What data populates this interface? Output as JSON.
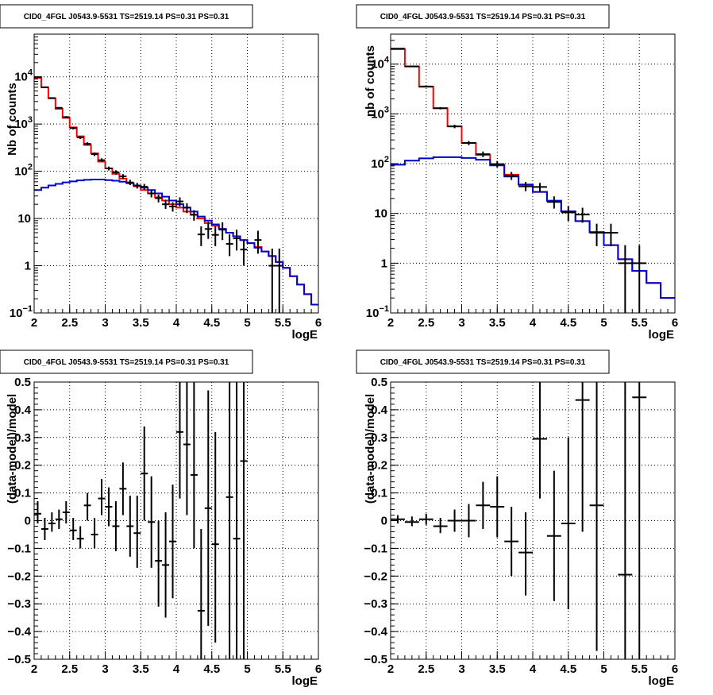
{
  "chart_data": [
    {
      "type": "histogram",
      "panel": "top-left",
      "title": "CID0_4FGL J0543.9-5531 TS=2519.14 PS=0.31 PS=0.31",
      "xlabel": "logE",
      "ylabel": "Nb of counts",
      "xlim": [
        2,
        6
      ],
      "ylim": [
        0.1,
        80000
      ],
      "yscale": "log",
      "grid": true,
      "x_ticks": [
        "2",
        "2.5",
        "3",
        "3.5",
        "4",
        "4.5",
        "5",
        "5.5",
        "6"
      ],
      "y_ticks": [
        {
          "v": 0.1,
          "mant": "10",
          "exp": "−1"
        },
        {
          "v": 1,
          "mant": "1",
          "exp": ""
        },
        {
          "v": 10,
          "mant": "10",
          "exp": ""
        },
        {
          "v": 100,
          "mant": "10",
          "exp": "2"
        },
        {
          "v": 1000,
          "mant": "10",
          "exp": "3"
        },
        {
          "v": 10000,
          "mant": "10",
          "exp": "4"
        }
      ],
      "bin_edges": [
        2.0,
        2.1,
        2.2,
        2.3,
        2.4,
        2.5,
        2.6,
        2.7,
        2.8,
        2.9,
        3.0,
        3.1,
        3.2,
        3.3,
        3.4,
        3.5,
        3.6,
        3.7,
        3.8,
        3.9,
        4.0,
        4.1,
        4.2,
        4.3,
        4.4,
        4.5,
        4.6,
        4.7,
        4.8,
        4.9,
        5.0,
        5.1,
        5.2,
        5.3,
        5.4,
        5.5,
        5.6,
        5.7,
        5.8,
        5.9,
        6.0
      ],
      "series": [
        {
          "color": "#ff0000",
          "values": [
            9500,
            6000,
            3500,
            2100,
            1350,
            850,
            550,
            360,
            240,
            160,
            115,
            88,
            70,
            56,
            48,
            40,
            34,
            28,
            24,
            20,
            17,
            14,
            12,
            10,
            8,
            7,
            6,
            5,
            4.2,
            3.5,
            3,
            2.5,
            2,
            1.6,
            1.2,
            0.9,
            0.6,
            0.4,
            0.25,
            0.15
          ]
        },
        {
          "color": "#0000cc",
          "values": [
            40,
            45,
            50,
            54,
            58,
            61,
            64,
            66,
            67,
            67,
            65,
            63,
            60,
            56,
            50,
            45,
            40,
            34,
            29,
            24,
            20,
            17,
            14,
            11,
            9,
            7.5,
            6,
            5,
            4.2,
            3.5,
            3,
            2.4,
            2,
            1.6,
            1.2,
            0.9,
            0.6,
            0.4,
            0.25,
            0.15
          ]
        }
      ],
      "points": [
        {
          "x": 2.05,
          "y": 9800,
          "xerr": 0.05,
          "ylo": 9600,
          "yhi": 10000
        },
        {
          "x": 2.15,
          "y": 6000,
          "xerr": 0.05,
          "ylo": 5850,
          "yhi": 6150
        },
        {
          "x": 2.25,
          "y": 3550,
          "xerr": 0.05,
          "ylo": 3440,
          "yhi": 3660
        },
        {
          "x": 2.35,
          "y": 2200,
          "xerr": 0.05,
          "ylo": 2110,
          "yhi": 2290
        },
        {
          "x": 2.45,
          "y": 1400,
          "xerr": 0.05,
          "ylo": 1330,
          "yhi": 1470
        },
        {
          "x": 2.55,
          "y": 820,
          "xerr": 0.05,
          "ylo": 770,
          "yhi": 870
        },
        {
          "x": 2.65,
          "y": 520,
          "xerr": 0.05,
          "ylo": 480,
          "yhi": 560
        },
        {
          "x": 2.75,
          "y": 380,
          "xerr": 0.05,
          "ylo": 350,
          "yhi": 410
        },
        {
          "x": 2.85,
          "y": 230,
          "xerr": 0.05,
          "ylo": 210,
          "yhi": 250
        },
        {
          "x": 2.95,
          "y": 172,
          "xerr": 0.05,
          "ylo": 156,
          "yhi": 188
        },
        {
          "x": 3.05,
          "y": 115,
          "xerr": 0.05,
          "ylo": 104,
          "yhi": 126
        },
        {
          "x": 3.15,
          "y": 95,
          "xerr": 0.05,
          "ylo": 85,
          "yhi": 105
        },
        {
          "x": 3.25,
          "y": 78,
          "xerr": 0.05,
          "ylo": 69,
          "yhi": 87
        },
        {
          "x": 3.35,
          "y": 58,
          "xerr": 0.05,
          "ylo": 51,
          "yhi": 66
        },
        {
          "x": 3.45,
          "y": 50,
          "xerr": 0.05,
          "ylo": 43,
          "yhi": 57
        },
        {
          "x": 3.55,
          "y": 47,
          "xerr": 0.05,
          "ylo": 40,
          "yhi": 54
        },
        {
          "x": 3.65,
          "y": 34,
          "xerr": 0.05,
          "ylo": 28,
          "yhi": 40
        },
        {
          "x": 3.75,
          "y": 27,
          "xerr": 0.05,
          "ylo": 22,
          "yhi": 32
        },
        {
          "x": 3.85,
          "y": 20,
          "xerr": 0.05,
          "ylo": 16,
          "yhi": 25
        },
        {
          "x": 3.95,
          "y": 18,
          "xerr": 0.05,
          "ylo": 14,
          "yhi": 22
        },
        {
          "x": 4.05,
          "y": 23,
          "xerr": 0.05,
          "ylo": 18,
          "yhi": 28
        },
        {
          "x": 4.15,
          "y": 17,
          "xerr": 0.05,
          "ylo": 13,
          "yhi": 21
        },
        {
          "x": 4.25,
          "y": 12,
          "xerr": 0.05,
          "ylo": 9,
          "yhi": 15
        },
        {
          "x": 4.35,
          "y": 4.6,
          "xerr": 0.05,
          "ylo": 2.6,
          "yhi": 6.8
        },
        {
          "x": 4.45,
          "y": 6,
          "xerr": 0.05,
          "ylo": 3.7,
          "yhi": 8.5
        },
        {
          "x": 4.55,
          "y": 4.5,
          "xerr": 0.05,
          "ylo": 2.6,
          "yhi": 6.8
        },
        {
          "x": 4.65,
          "y": 5.8,
          "xerr": 0.05,
          "ylo": 3.5,
          "yhi": 8.3
        },
        {
          "x": 4.75,
          "y": 2.9,
          "xerr": 0.05,
          "ylo": 1.6,
          "yhi": 4.6
        },
        {
          "x": 4.85,
          "y": 3.8,
          "xerr": 0.05,
          "ylo": 2.1,
          "yhi": 5.8
        },
        {
          "x": 4.95,
          "y": 2.2,
          "xerr": 0.05,
          "ylo": 1.0,
          "yhi": 3.5
        },
        {
          "x": 5.15,
          "y": 3.5,
          "xerr": 0.05,
          "ylo": 1.8,
          "yhi": 5.5
        },
        {
          "x": 5.35,
          "y": 1,
          "xerr": 0.05,
          "ylo": 0.1,
          "yhi": 2.3
        },
        {
          "x": 5.45,
          "y": 1,
          "xerr": 0.05,
          "ylo": 0.1,
          "yhi": 2.3
        }
      ]
    },
    {
      "type": "histogram",
      "panel": "top-right",
      "title": "CID0_4FGL J0543.9-5531 TS=2519.14 PS=0.31 PS=0.31",
      "xlabel": "logE",
      "ylabel": "nb of counts",
      "xlim": [
        2,
        6
      ],
      "ylim": [
        0.1,
        40000
      ],
      "yscale": "log",
      "grid": true,
      "x_ticks": [
        "2",
        "2.5",
        "3",
        "3.5",
        "4",
        "4.5",
        "5",
        "5.5",
        "6"
      ],
      "y_ticks": [
        {
          "v": 0.1,
          "mant": "10",
          "exp": "−1"
        },
        {
          "v": 1,
          "mant": "1",
          "exp": ""
        },
        {
          "v": 10,
          "mant": "10",
          "exp": ""
        },
        {
          "v": 100,
          "mant": "10",
          "exp": "2"
        },
        {
          "v": 1000,
          "mant": "10",
          "exp": "3"
        },
        {
          "v": 10000,
          "mant": "10",
          "exp": "4"
        }
      ],
      "bin_edges": [
        2.0,
        2.2,
        2.4,
        2.6,
        2.8,
        3.0,
        3.2,
        3.4,
        3.6,
        3.8,
        4.0,
        4.2,
        4.4,
        4.6,
        4.8,
        5.0,
        5.2,
        5.4,
        5.6,
        5.8,
        6.0
      ],
      "series": [
        {
          "color": "#ff0000",
          "values": [
            20000,
            9000,
            3500,
            1300,
            560,
            260,
            150,
            95,
            60,
            38,
            27,
            18,
            11,
            7,
            4.2,
            2.3,
            1.2,
            0.7,
            0.4,
            0.2
          ]
        },
        {
          "color": "#0000cc",
          "values": [
            95,
            115,
            128,
            135,
            135,
            130,
            120,
            92,
            55,
            38,
            27,
            18,
            11,
            7,
            4.2,
            2.3,
            1.2,
            0.7,
            0.4,
            0.2
          ]
        }
      ],
      "points": [
        {
          "x": 2.1,
          "y": 20500,
          "xerr": 0.1,
          "ylo": 20200,
          "yhi": 20800
        },
        {
          "x": 2.3,
          "y": 9000,
          "xerr": 0.1,
          "ylo": 8800,
          "yhi": 9200
        },
        {
          "x": 2.5,
          "y": 3550,
          "xerr": 0.1,
          "ylo": 3430,
          "yhi": 3670
        },
        {
          "x": 2.7,
          "y": 1300,
          "xerr": 0.1,
          "ylo": 1230,
          "yhi": 1370
        },
        {
          "x": 2.9,
          "y": 560,
          "xerr": 0.1,
          "ylo": 515,
          "yhi": 605
        },
        {
          "x": 3.1,
          "y": 260,
          "xerr": 0.1,
          "ylo": 235,
          "yhi": 285
        },
        {
          "x": 3.3,
          "y": 155,
          "xerr": 0.1,
          "ylo": 135,
          "yhi": 175
        },
        {
          "x": 3.5,
          "y": 98,
          "xerr": 0.1,
          "ylo": 84,
          "yhi": 113
        },
        {
          "x": 3.7,
          "y": 57,
          "xerr": 0.1,
          "ylo": 47,
          "yhi": 68
        },
        {
          "x": 3.9,
          "y": 35,
          "xerr": 0.1,
          "ylo": 28,
          "yhi": 43
        },
        {
          "x": 4.1,
          "y": 34,
          "xerr": 0.1,
          "ylo": 27,
          "yhi": 41
        },
        {
          "x": 4.3,
          "y": 17,
          "xerr": 0.1,
          "ylo": 12.5,
          "yhi": 22
        },
        {
          "x": 4.5,
          "y": 10.5,
          "xerr": 0.1,
          "ylo": 7,
          "yhi": 14
        },
        {
          "x": 4.7,
          "y": 9.5,
          "xerr": 0.1,
          "ylo": 6.5,
          "yhi": 13
        },
        {
          "x": 4.9,
          "y": 4.1,
          "xerr": 0.1,
          "ylo": 2.2,
          "yhi": 6.2
        },
        {
          "x": 5.1,
          "y": 4.1,
          "xerr": 0.1,
          "ylo": 2.2,
          "yhi": 6.2
        },
        {
          "x": 5.3,
          "y": 1,
          "xerr": 0.1,
          "ylo": 0.1,
          "yhi": 2.3
        },
        {
          "x": 5.5,
          "y": 1,
          "xerr": 0.1,
          "ylo": 0.1,
          "yhi": 2.3
        }
      ]
    },
    {
      "type": "scatter",
      "panel": "bottom-left",
      "title": "CID0_4FGL J0543.9-5531 TS=2519.14 PS=0.31 PS=0.31",
      "xlabel": "logE",
      "ylabel": "(data-model)/model",
      "xlim": [
        2,
        6
      ],
      "ylim": [
        -0.5,
        0.5
      ],
      "yscale": "linear",
      "grid": true,
      "x_ticks": [
        "2",
        "2.5",
        "3",
        "3.5",
        "4",
        "4.5",
        "5",
        "5.5",
        "6"
      ],
      "y_ticks": [
        "−0.5",
        "−0.4",
        "−0.3",
        "−0.2",
        "−0.1",
        "0",
        "0.1",
        "0.2",
        "0.3",
        "0.4",
        "0.5"
      ],
      "points": [
        {
          "x": 2.05,
          "y": 0.025,
          "xerr": 0.05,
          "ylo": -0.01,
          "yhi": 0.07
        },
        {
          "x": 2.15,
          "y": -0.03,
          "xerr": 0.05,
          "ylo": -0.07,
          "yhi": 0.01
        },
        {
          "x": 2.25,
          "y": -0.01,
          "xerr": 0.05,
          "ylo": -0.04,
          "yhi": 0.03
        },
        {
          "x": 2.35,
          "y": 0.005,
          "xerr": 0.05,
          "ylo": -0.03,
          "yhi": 0.04
        },
        {
          "x": 2.45,
          "y": 0.03,
          "xerr": 0.05,
          "ylo": -0.01,
          "yhi": 0.07
        },
        {
          "x": 2.55,
          "y": -0.035,
          "xerr": 0.05,
          "ylo": -0.07,
          "yhi": 0.01
        },
        {
          "x": 2.65,
          "y": -0.065,
          "xerr": 0.05,
          "ylo": -0.1,
          "yhi": -0.02
        },
        {
          "x": 2.75,
          "y": 0.055,
          "xerr": 0.05,
          "ylo": 0.0,
          "yhi": 0.1
        },
        {
          "x": 2.85,
          "y": -0.05,
          "xerr": 0.05,
          "ylo": -0.1,
          "yhi": 0.01
        },
        {
          "x": 2.95,
          "y": 0.08,
          "xerr": 0.05,
          "ylo": 0.02,
          "yhi": 0.15
        },
        {
          "x": 3.05,
          "y": 0.05,
          "xerr": 0.05,
          "ylo": -0.02,
          "yhi": 0.12
        },
        {
          "x": 3.15,
          "y": -0.02,
          "xerr": 0.05,
          "ylo": -0.11,
          "yhi": 0.07
        },
        {
          "x": 3.25,
          "y": 0.115,
          "xerr": 0.05,
          "ylo": 0.02,
          "yhi": 0.21
        },
        {
          "x": 3.35,
          "y": -0.02,
          "xerr": 0.05,
          "ylo": -0.13,
          "yhi": 0.09
        },
        {
          "x": 3.45,
          "y": -0.045,
          "xerr": 0.05,
          "ylo": -0.17,
          "yhi": 0.09
        },
        {
          "x": 3.55,
          "y": 0.17,
          "xerr": 0.05,
          "ylo": 0.0,
          "yhi": 0.34
        },
        {
          "x": 3.65,
          "y": -0.005,
          "xerr": 0.05,
          "ylo": -0.17,
          "yhi": 0.16
        },
        {
          "x": 3.75,
          "y": -0.145,
          "xerr": 0.05,
          "ylo": -0.31,
          "yhi": 0.0
        },
        {
          "x": 3.85,
          "y": -0.16,
          "xerr": 0.05,
          "ylo": -0.35,
          "yhi": 0.03
        },
        {
          "x": 3.95,
          "y": -0.075,
          "xerr": 0.05,
          "ylo": -0.28,
          "yhi": 0.13
        },
        {
          "x": 4.05,
          "y": 0.32,
          "xerr": 0.05,
          "ylo": 0.08,
          "yhi": 0.5
        },
        {
          "x": 4.15,
          "y": 0.275,
          "xerr": 0.05,
          "ylo": 0.02,
          "yhi": 0.5
        },
        {
          "x": 4.25,
          "y": 0.165,
          "xerr": 0.05,
          "ylo": -0.1,
          "yhi": 0.5
        },
        {
          "x": 4.35,
          "y": -0.325,
          "xerr": 0.05,
          "ylo": -0.5,
          "yhi": -0.03
        },
        {
          "x": 4.45,
          "y": 0.045,
          "xerr": 0.05,
          "ylo": -0.38,
          "yhi": 0.47
        },
        {
          "x": 4.55,
          "y": -0.085,
          "xerr": 0.05,
          "ylo": -0.44,
          "yhi": 0.32
        },
        {
          "x": 4.75,
          "y": 0.085,
          "xerr": 0.05,
          "ylo": -0.5,
          "yhi": 0.5
        },
        {
          "x": 4.85,
          "y": -0.065,
          "xerr": 0.05,
          "ylo": -0.5,
          "yhi": 0.5
        },
        {
          "x": 4.95,
          "y": 0.215,
          "xerr": 0.05,
          "ylo": -0.5,
          "yhi": 0.5
        }
      ]
    },
    {
      "type": "scatter",
      "panel": "bottom-right",
      "title": "CID0_4FGL J0543.9-5531 TS=2519.14 PS=0.31 PS=0.31",
      "xlabel": "logE",
      "ylabel": "(data-model)/model",
      "xlim": [
        2,
        6
      ],
      "ylim": [
        -0.5,
        0.5
      ],
      "yscale": "linear",
      "grid": true,
      "x_ticks": [
        "2",
        "2.5",
        "3",
        "3.5",
        "4",
        "4.5",
        "5",
        "5.5",
        "6"
      ],
      "y_ticks": [
        "−0.5",
        "−0.4",
        "−0.3",
        "−0.2",
        "−0.1",
        "0",
        "0.1",
        "0.2",
        "0.3",
        "0.4",
        "0.5"
      ],
      "points": [
        {
          "x": 2.1,
          "y": 0.005,
          "xerr": 0.1,
          "ylo": -0.01,
          "yhi": 0.02
        },
        {
          "x": 2.3,
          "y": -0.005,
          "xerr": 0.1,
          "ylo": -0.02,
          "yhi": 0.015
        },
        {
          "x": 2.5,
          "y": 0.005,
          "xerr": 0.1,
          "ylo": -0.015,
          "yhi": 0.025
        },
        {
          "x": 2.7,
          "y": -0.02,
          "xerr": 0.1,
          "ylo": -0.045,
          "yhi": 0.01
        },
        {
          "x": 2.9,
          "y": 0.0,
          "xerr": 0.1,
          "ylo": -0.04,
          "yhi": 0.04
        },
        {
          "x": 3.1,
          "y": 0.0,
          "xerr": 0.1,
          "ylo": -0.06,
          "yhi": 0.06
        },
        {
          "x": 3.3,
          "y": 0.055,
          "xerr": 0.1,
          "ylo": -0.03,
          "yhi": 0.14
        },
        {
          "x": 3.5,
          "y": 0.05,
          "xerr": 0.1,
          "ylo": -0.06,
          "yhi": 0.16
        },
        {
          "x": 3.7,
          "y": -0.075,
          "xerr": 0.1,
          "ylo": -0.2,
          "yhi": 0.05
        },
        {
          "x": 3.9,
          "y": -0.115,
          "xerr": 0.1,
          "ylo": -0.27,
          "yhi": 0.03
        },
        {
          "x": 4.1,
          "y": 0.295,
          "xerr": 0.1,
          "ylo": 0.08,
          "yhi": 0.5
        },
        {
          "x": 4.3,
          "y": -0.055,
          "xerr": 0.1,
          "ylo": -0.29,
          "yhi": 0.18
        },
        {
          "x": 4.5,
          "y": -0.01,
          "xerr": 0.1,
          "ylo": -0.32,
          "yhi": 0.3
        },
        {
          "x": 4.7,
          "y": 0.435,
          "xerr": 0.1,
          "ylo": -0.04,
          "yhi": 0.5
        },
        {
          "x": 4.9,
          "y": 0.055,
          "xerr": 0.1,
          "ylo": -0.47,
          "yhi": 0.5
        },
        {
          "x": 5.3,
          "y": -0.195,
          "xerr": 0.1,
          "ylo": -0.5,
          "yhi": 0.5
        },
        {
          "x": 5.5,
          "y": 0.445,
          "xerr": 0.1,
          "ylo": -0.5,
          "yhi": 0.5
        }
      ]
    }
  ]
}
